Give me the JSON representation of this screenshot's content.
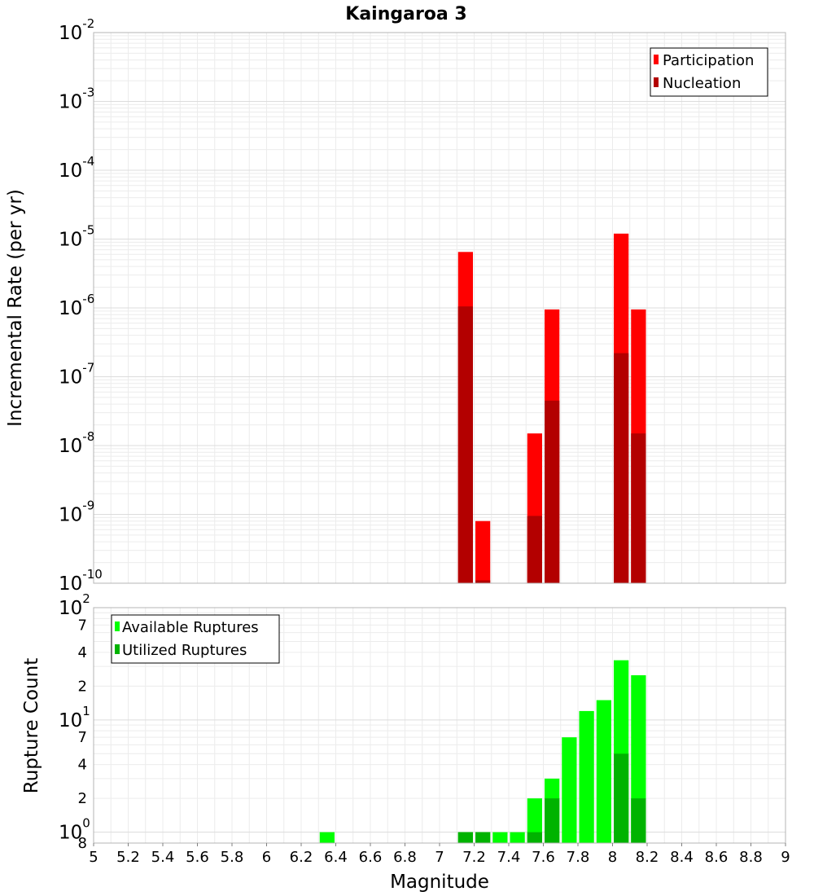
{
  "chart_data": [
    {
      "type": "bar",
      "title": "Kaingaroa 3",
      "xlabel": "Magnitude",
      "ylabel": "Incremental Rate (per yr)",
      "yscale": "log",
      "xlim": [
        5,
        9
      ],
      "ylim": [
        1e-10,
        0.01
      ],
      "bin_width": 0.1,
      "x_ticks": [
        "5",
        "5.2",
        "5.4",
        "5.6",
        "5.8",
        "6",
        "6.2",
        "6.4",
        "6.6",
        "6.8",
        "7",
        "7.2",
        "7.4",
        "7.6",
        "7.8",
        "8",
        "8.2",
        "8.4",
        "8.6",
        "8.8",
        "9"
      ],
      "y_ticks": [
        {
          "value": 0.01,
          "base": "10",
          "exp": "-2"
        },
        {
          "value": 0.001,
          "base": "10",
          "exp": "-3"
        },
        {
          "value": 0.0001,
          "base": "10",
          "exp": "-4"
        },
        {
          "value": 1e-05,
          "base": "10",
          "exp": "-5"
        },
        {
          "value": 1e-06,
          "base": "10",
          "exp": "-6"
        },
        {
          "value": 1e-07,
          "base": "10",
          "exp": "-7"
        },
        {
          "value": 1e-08,
          "base": "10",
          "exp": "-8"
        },
        {
          "value": 1e-09,
          "base": "10",
          "exp": "-9"
        },
        {
          "value": 1e-10,
          "base": "10",
          "exp": "-10"
        }
      ],
      "legend": "top-right",
      "series": [
        {
          "name": "Participation",
          "color": "#ff0000",
          "x": [
            7.15,
            7.25,
            7.55,
            7.65,
            8.05,
            8.15
          ],
          "values": [
            6.5e-06,
            8e-10,
            1.5e-08,
            9.5e-07,
            1.2e-05,
            9.5e-07
          ]
        },
        {
          "name": "Nucleation",
          "color": "#b30000",
          "x": [
            7.15,
            7.25,
            7.55,
            7.65,
            8.05,
            8.15
          ],
          "values": [
            1.05e-06,
            1.1e-10,
            9.5e-10,
            4.5e-08,
            2.2e-07,
            1.5e-08
          ]
        }
      ]
    },
    {
      "type": "bar",
      "title": "",
      "xlabel": "Magnitude",
      "ylabel": "Rupture Count",
      "yscale": "log",
      "xlim": [
        5,
        9
      ],
      "ylim": [
        0.8,
        100
      ],
      "bin_width": 0.1,
      "y_major_ticks": [
        {
          "value": 100,
          "base": "10",
          "exp": "2"
        },
        {
          "value": 10,
          "base": "10",
          "exp": "1"
        },
        {
          "value": 1,
          "base": "10",
          "exp": "0"
        }
      ],
      "y_minor_ticks": [
        {
          "value": 70,
          "label": "7"
        },
        {
          "value": 40,
          "label": "4"
        },
        {
          "value": 20,
          "label": "2"
        },
        {
          "value": 7,
          "label": "7"
        },
        {
          "value": 4,
          "label": "4"
        },
        {
          "value": 2,
          "label": "2"
        },
        {
          "value": 0.8,
          "label": "8"
        }
      ],
      "legend": "top-left",
      "series": [
        {
          "name": "Available Ruptures",
          "color": "#00ff00",
          "x": [
            6.35,
            7.15,
            7.25,
            7.35,
            7.45,
            7.55,
            7.65,
            7.75,
            7.85,
            7.95,
            8.05,
            8.15
          ],
          "values": [
            1,
            1,
            1,
            1,
            1,
            2,
            3,
            7,
            12,
            15,
            34,
            25
          ]
        },
        {
          "name": "Utilized Ruptures",
          "color": "#00b300",
          "x": [
            7.15,
            7.25,
            7.55,
            7.65,
            8.05,
            8.15
          ],
          "values": [
            1,
            1,
            1,
            2,
            5,
            2
          ]
        }
      ]
    }
  ]
}
